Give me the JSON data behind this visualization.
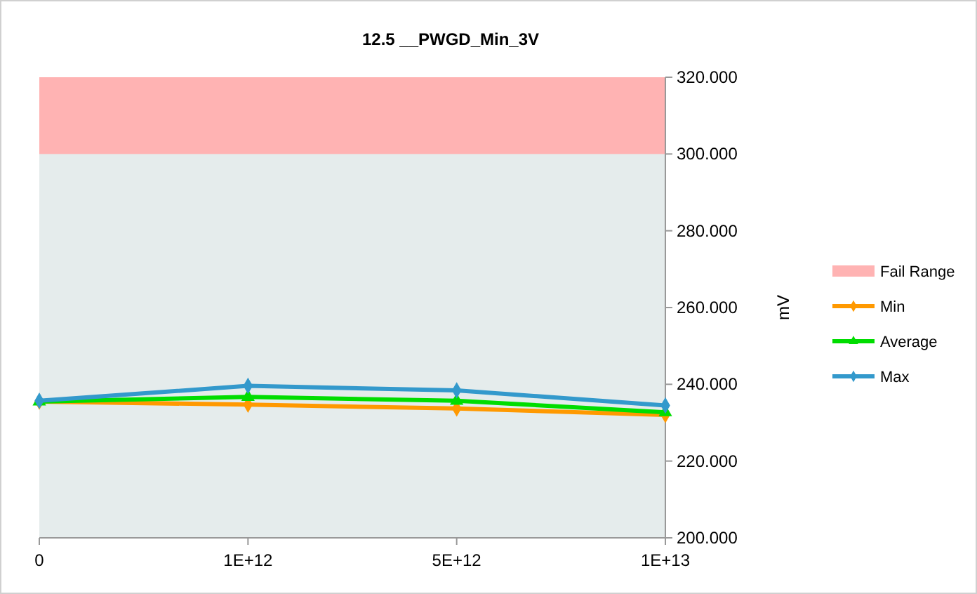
{
  "chart_data": {
    "type": "line",
    "title": "12.5 __PWGD_Min_3V",
    "ylabel": "mV",
    "categories": [
      "0",
      "1E+12",
      "5E+12",
      "1E+13"
    ],
    "series": [
      {
        "name": "Min",
        "color": "#ff9900",
        "marker": "diamond",
        "values": [
          235.5,
          234.7,
          233.7,
          232.0
        ]
      },
      {
        "name": "Average",
        "color": "#00dd00",
        "marker": "triangle",
        "values": [
          235.5,
          236.7,
          235.7,
          232.7
        ]
      },
      {
        "name": "Max",
        "color": "#3399cc",
        "marker": "diamond",
        "values": [
          235.7,
          239.6,
          238.4,
          234.5
        ]
      }
    ],
    "bands": [
      {
        "axis": "y",
        "from": 300,
        "to": 320,
        "label": "Fail Range",
        "color": "#ffb3b3"
      }
    ],
    "ylim": [
      200,
      320
    ],
    "yticks": [
      {
        "value": 200,
        "label": "200.000"
      },
      {
        "value": 220,
        "label": "220.000"
      },
      {
        "value": 240,
        "label": "240.000"
      },
      {
        "value": 260,
        "label": "260.000"
      },
      {
        "value": 280,
        "label": "280.000"
      },
      {
        "value": 300,
        "label": "300.000"
      },
      {
        "value": 320,
        "label": "320.000"
      }
    ],
    "legend": "right",
    "grid": false
  }
}
